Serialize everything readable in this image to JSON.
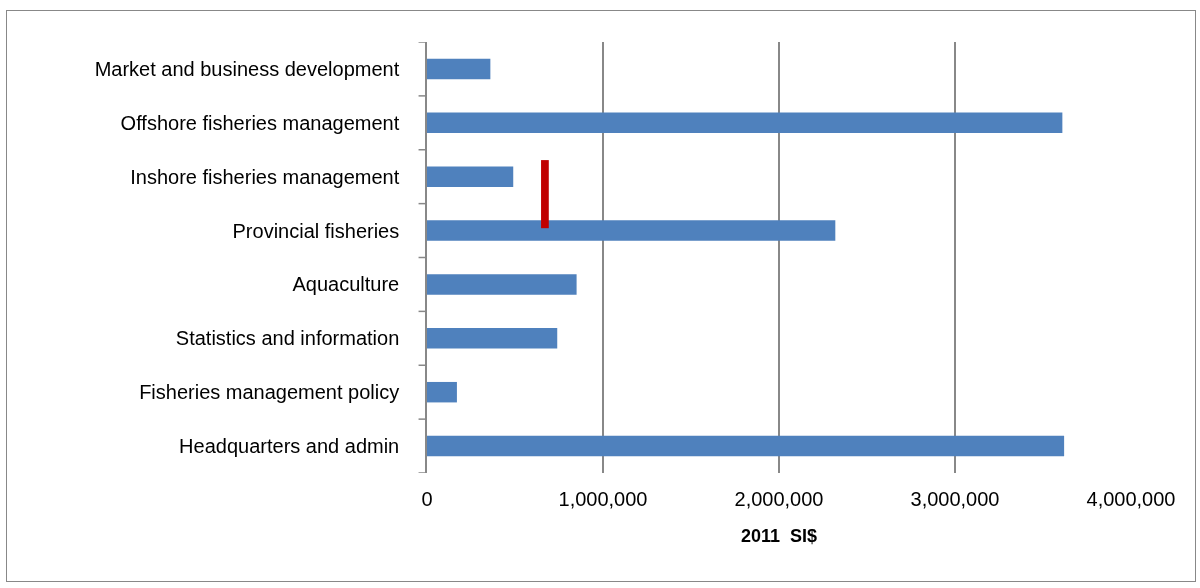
{
  "chart_data": {
    "type": "bar",
    "orientation": "horizontal",
    "xlabel": "2011  SI$",
    "categories": [
      "Market and business development",
      "Offshore fisheries management",
      "Inshore fisheries management",
      "Provincial fisheries",
      "Aquaculture",
      "Statistics and information",
      "Fisheries management policy",
      "Headquarters and admin"
    ],
    "values": [
      360000,
      3610000,
      490000,
      2320000,
      850000,
      740000,
      170000,
      3620000
    ],
    "color": "#4f81bd",
    "xlim": [
      0,
      4000000
    ],
    "xticks": [
      0,
      {
        "value": 1000000,
        "label": "1,000,000"
      },
      {
        "value": 2000000,
        "label": "2,000,000"
      },
      {
        "value": 3000000,
        "label": "3,000,000"
      },
      {
        "value": 4000000,
        "label": "4,000,000"
      }
    ],
    "grid": "x"
  }
}
